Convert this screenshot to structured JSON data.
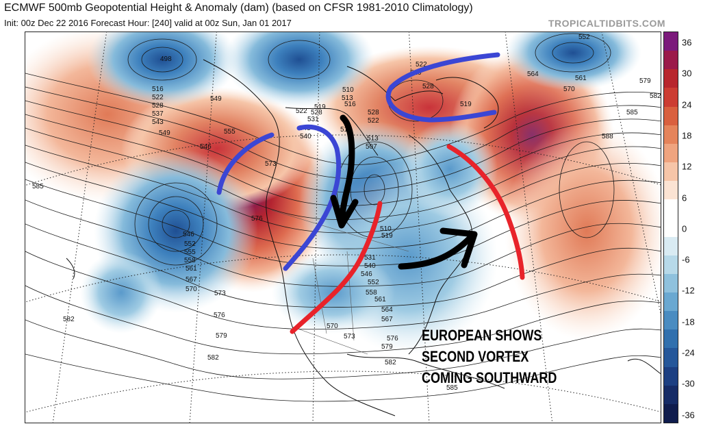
{
  "header": {
    "title": "ECMWF 500mb Geopotential Height & Anomaly (dam) (based on CFSR 1981-2010 Climatology)",
    "subtitle": "Init: 00z Dec 22 2016   Forecast Hour: [240]   valid at 00z Sun, Jan 01 2017",
    "brand": "TROPICALTIDBITS.COM"
  },
  "colorbar": {
    "ticks": [
      "36",
      "30",
      "24",
      "18",
      "12",
      "6",
      "0",
      "-6",
      "-12",
      "-18",
      "-24",
      "-30",
      "-36"
    ],
    "colors": [
      "#7b1a7b",
      "#9b1a4a",
      "#b8262d",
      "#cc3d33",
      "#d9603f",
      "#e5845b",
      "#efa47f",
      "#f6c5a8",
      "#fbe3d3",
      "#ffffff",
      "#ffffff",
      "#d9ebf3",
      "#b7d9e9",
      "#8fc1dd",
      "#6aa8d1",
      "#4a8cc1",
      "#3170ae",
      "#25579a",
      "#1c3f82",
      "#152b66",
      "#0f1c4d"
    ]
  },
  "annotation": {
    "lines": [
      "EUROPEAN SHOWS",
      "SECOND VORTEX",
      "COMING SOUTHWARD"
    ]
  },
  "contour_labels": [
    "498",
    "516",
    "522",
    "528",
    "537",
    "543",
    "549",
    "546",
    "555",
    "549",
    "585",
    "573",
    "576",
    "546",
    "552",
    "555",
    "558",
    "561",
    "567",
    "570",
    "573",
    "576",
    "582",
    "579",
    "582",
    "522",
    "519",
    "513",
    "510",
    "516",
    "531",
    "528",
    "543",
    "540",
    "513",
    "507",
    "516",
    "522",
    "528",
    "519",
    "510",
    "531",
    "540",
    "546",
    "552",
    "558",
    "561",
    "564",
    "567",
    "570",
    "573",
    "576",
    "579",
    "582",
    "585",
    "519",
    "522",
    "528",
    "519",
    "552",
    "564",
    "561",
    "570",
    "579",
    "582",
    "585",
    "588"
  ],
  "colors": {
    "arrow_blue": "#3b46d4",
    "arrow_red": "#e8232a",
    "arrow_black": "#000000",
    "positive_anomaly": "#c0392b",
    "negative_anomaly": "#3a7fc0"
  }
}
